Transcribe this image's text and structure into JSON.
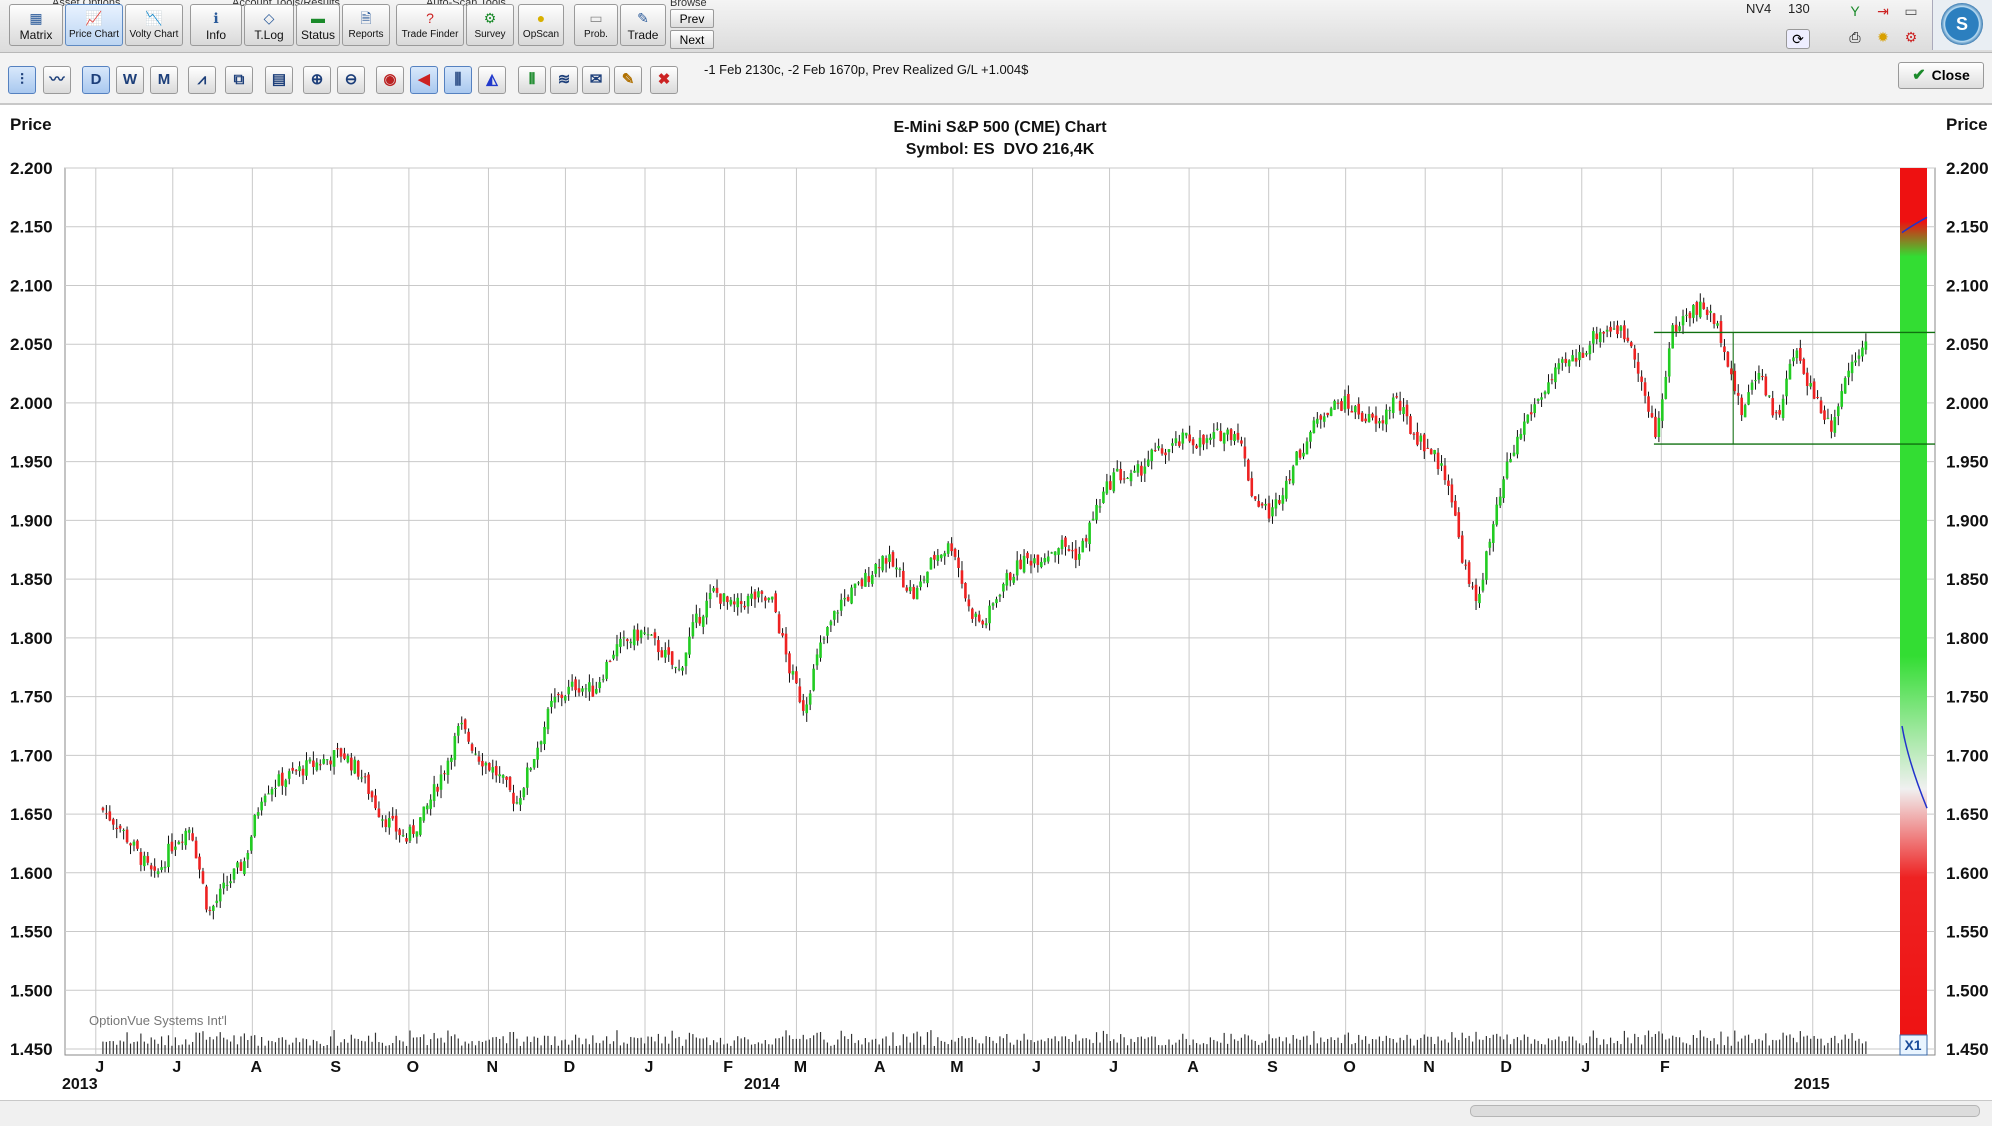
{
  "toolbar": {
    "group_labels": [
      "Asset Options",
      "Account Tools/Results",
      "Auto-Scan Tools",
      "Browse"
    ],
    "buttons": [
      {
        "label": "Matrix",
        "icon": "matrix-icon"
      },
      {
        "label": "Price Chart",
        "icon": "price-chart-icon"
      },
      {
        "label": "Volty Chart",
        "icon": "volatility-chart-icon"
      },
      {
        "label": "Info",
        "icon": "info-icon"
      },
      {
        "label": "T.Log",
        "icon": "trade-log-icon"
      },
      {
        "label": "Status",
        "icon": "status-icon"
      },
      {
        "label": "Reports",
        "icon": "reports-icon"
      },
      {
        "label": "Trade Finder",
        "icon": "trade-finder-icon"
      },
      {
        "label": "Survey",
        "icon": "survey-icon"
      },
      {
        "label": "OpScan",
        "icon": "opscan-icon"
      },
      {
        "label": "Prob.",
        "icon": "probability-icon"
      },
      {
        "label": "Trade",
        "icon": "trade-icon"
      }
    ],
    "browse_prev": "Prev",
    "browse_next": "Next",
    "status_nv": "NV4",
    "status_count": "130"
  },
  "chart_toolbar": {
    "period_buttons": [
      "D",
      "W",
      "M"
    ],
    "info_text": "-1 Feb 2130c, -2 Feb 1670p, Prev Realized G/L +1.004$",
    "close_label": "Close"
  },
  "chart_data": {
    "type": "candlestick",
    "title": "E-Mini S&P 500 (CME) Chart",
    "subtitle": "Symbol: ES  DVO 216,4K",
    "ylabel_left": "Price",
    "ylabel_right": "Price",
    "ylim": [
      1450,
      2200
    ],
    "yticks": [
      "2.200",
      "2.150",
      "2.100",
      "2.050",
      "2.000",
      "1.950",
      "1.900",
      "1.850",
      "1.800",
      "1.750",
      "1.700",
      "1.650",
      "1.600",
      "1.550",
      "1.500",
      "1.450"
    ],
    "xticks": [
      "J",
      "J",
      "A",
      "S",
      "O",
      "N",
      "D",
      "J",
      "F",
      "M",
      "A",
      "M",
      "J",
      "J",
      "A",
      "S",
      "O",
      "N",
      "D",
      "J",
      "F"
    ],
    "year_labels": [
      "2013",
      "2014",
      "2015"
    ],
    "watermark": "OptionVue Systems Int'l",
    "x1_label": "X1",
    "grid": true,
    "price_path": [
      [
        "2013-06-03",
        1655
      ],
      [
        "2013-06-10",
        1640
      ],
      [
        "2013-06-24",
        1595
      ],
      [
        "2013-07-01",
        1625
      ],
      [
        "2013-07-08",
        1640
      ],
      [
        "2013-07-15",
        1565
      ],
      [
        "2013-07-22",
        1590
      ],
      [
        "2013-07-29",
        1610
      ],
      [
        "2013-08-05",
        1670
      ],
      [
        "2013-08-20",
        1688
      ],
      [
        "2013-09-05",
        1702
      ],
      [
        "2013-09-12",
        1685
      ],
      [
        "2013-09-20",
        1650
      ],
      [
        "2013-09-30",
        1628
      ],
      [
        "2013-10-07",
        1650
      ],
      [
        "2013-10-15",
        1690
      ],
      [
        "2013-10-21",
        1725
      ],
      [
        "2013-10-28",
        1700
      ],
      [
        "2013-11-04",
        1685
      ],
      [
        "2013-11-12",
        1660
      ],
      [
        "2013-11-18",
        1695
      ],
      [
        "2013-11-26",
        1745
      ],
      [
        "2013-12-05",
        1760
      ],
      [
        "2013-12-12",
        1755
      ],
      [
        "2013-12-20",
        1790
      ],
      [
        "2013-12-31",
        1805
      ],
      [
        "2014-01-07",
        1790
      ],
      [
        "2014-01-14",
        1770
      ],
      [
        "2014-01-20",
        1810
      ],
      [
        "2014-01-28",
        1840
      ],
      [
        "2014-02-04",
        1825
      ],
      [
        "2014-02-12",
        1835
      ],
      [
        "2014-02-20",
        1830
      ],
      [
        "2014-02-26",
        1775
      ],
      [
        "2014-03-04",
        1740
      ],
      [
        "2014-03-10",
        1790
      ],
      [
        "2014-03-18",
        1830
      ],
      [
        "2014-03-26",
        1845
      ],
      [
        "2014-04-04",
        1870
      ],
      [
        "2014-04-10",
        1855
      ],
      [
        "2014-04-16",
        1835
      ],
      [
        "2014-04-24",
        1870
      ],
      [
        "2014-05-01",
        1880
      ],
      [
        "2014-05-07",
        1825
      ],
      [
        "2014-05-13",
        1810
      ],
      [
        "2014-05-20",
        1845
      ],
      [
        "2014-05-28",
        1865
      ],
      [
        "2014-06-05",
        1870
      ],
      [
        "2014-06-12",
        1880
      ],
      [
        "2014-06-19",
        1870
      ],
      [
        "2014-06-26",
        1910
      ],
      [
        "2014-07-03",
        1940
      ],
      [
        "2014-07-10",
        1935
      ],
      [
        "2014-07-17",
        1955
      ],
      [
        "2014-07-24",
        1960
      ],
      [
        "2014-07-31",
        1970
      ],
      [
        "2014-08-07",
        1965
      ],
      [
        "2014-08-14",
        1975
      ],
      [
        "2014-08-20",
        1975
      ],
      [
        "2014-08-26",
        1920
      ],
      [
        "2014-09-02",
        1905
      ],
      [
        "2014-09-09",
        1940
      ],
      [
        "2014-09-16",
        1970
      ],
      [
        "2014-09-23",
        1995
      ],
      [
        "2014-09-30",
        2000
      ],
      [
        "2014-10-07",
        1990
      ],
      [
        "2014-10-14",
        1980
      ],
      [
        "2014-10-20",
        2005
      ],
      [
        "2014-10-27",
        1975
      ],
      [
        "2014-11-03",
        1960
      ],
      [
        "2014-11-10",
        1935
      ],
      [
        "2014-11-14",
        1885
      ],
      [
        "2014-11-18",
        1845
      ],
      [
        "2014-11-21",
        1830
      ],
      [
        "2014-11-26",
        1880
      ],
      [
        "2014-12-03",
        1945
      ],
      [
        "2014-12-10",
        1985
      ],
      [
        "2014-12-17",
        2010
      ],
      [
        "2014-12-24",
        2030
      ],
      [
        "2014-12-31",
        2040
      ],
      [
        "2015-01-07",
        2060
      ],
      [
        "2015-01-14",
        2065
      ],
      [
        "2015-01-21",
        2050
      ],
      [
        "2015-01-26",
        2000
      ],
      [
        "2015-01-30",
        1970
      ],
      [
        "2015-02-05",
        2060
      ],
      [
        "2015-02-12",
        2078
      ],
      [
        "2015-02-18",
        2082
      ],
      [
        "2015-02-25",
        2055
      ],
      [
        "2015-03-04",
        1990
      ],
      [
        "2015-03-11",
        2030
      ],
      [
        "2015-03-18",
        1985
      ],
      [
        "2015-03-25",
        2045
      ],
      [
        "2015-04-01",
        2010
      ],
      [
        "2015-04-08",
        1980
      ],
      [
        "2015-04-15",
        2030
      ],
      [
        "2015-04-22",
        2058
      ]
    ],
    "channel": {
      "start": "2015-01-26",
      "end": "2015-05-01",
      "upper": 2060,
      "lower": 1965
    },
    "probability_curve": {
      "upper_band": [
        2145,
        2158
      ],
      "lower_band": [
        1725,
        1655
      ]
    },
    "colors": {
      "up": "#22cc22",
      "down": "#ee2222",
      "grid": "#c9c9c9",
      "channel": "#107010",
      "prob_line": "#2233cc"
    }
  }
}
